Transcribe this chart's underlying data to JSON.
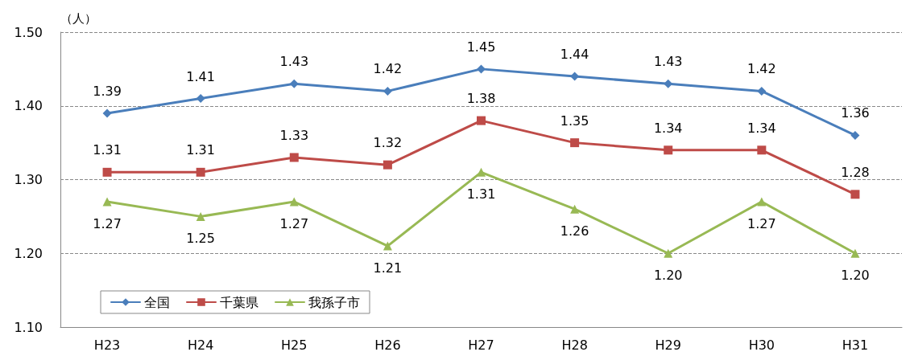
{
  "chart_data": {
    "type": "line",
    "ylabel": "（人）",
    "categories": [
      "H23",
      "H24",
      "H25",
      "H26",
      "H27",
      "H28",
      "H29",
      "H30",
      "H31"
    ],
    "series": [
      {
        "name": "全国",
        "color": "#4a7ebb",
        "marker": "diamond",
        "values": [
          1.39,
          1.41,
          1.43,
          1.42,
          1.45,
          1.44,
          1.43,
          1.42,
          1.36
        ],
        "value_labels": [
          "1.39",
          "1.41",
          "1.43",
          "1.42",
          "1.45",
          "1.44",
          "1.43",
          "1.42",
          "1.36"
        ]
      },
      {
        "name": "千葉県",
        "color": "#be4b48",
        "marker": "square",
        "values": [
          1.31,
          1.31,
          1.33,
          1.32,
          1.38,
          1.35,
          1.34,
          1.34,
          1.28
        ],
        "value_labels": [
          "1.31",
          "1.31",
          "1.33",
          "1.32",
          "1.38",
          "1.35",
          "1.34",
          "1.34",
          "1.28"
        ]
      },
      {
        "name": "我孫子市",
        "color": "#98b954",
        "marker": "triangle",
        "values": [
          1.27,
          1.25,
          1.27,
          1.21,
          1.31,
          1.26,
          1.2,
          1.27,
          1.2
        ],
        "value_labels": [
          "1.27",
          "1.25",
          "1.27",
          "1.21",
          "1.31",
          "1.26",
          "1.20",
          "1.27",
          "1.20"
        ]
      }
    ],
    "ylim": [
      1.1,
      1.5
    ],
    "yticks": [
      {
        "value": 1.1,
        "label": "1.10"
      },
      {
        "value": 1.2,
        "label": "1.20"
      },
      {
        "value": 1.3,
        "label": "1.30"
      },
      {
        "value": 1.4,
        "label": "1.40"
      },
      {
        "value": 1.5,
        "label": "1.50"
      }
    ],
    "grid": "y",
    "legend": "bottom left",
    "line_style": "solid"
  }
}
